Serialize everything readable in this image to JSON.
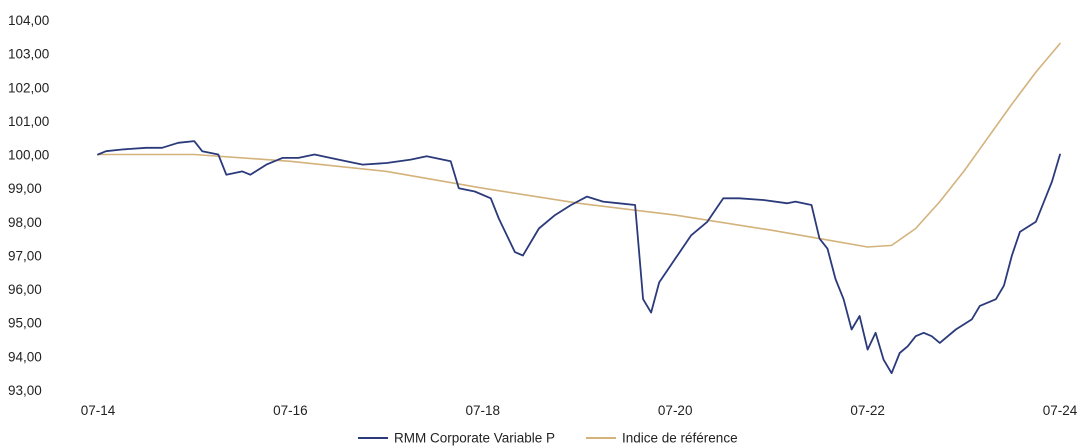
{
  "chart_data": {
    "type": "line",
    "title": "",
    "xlabel": "",
    "ylabel": "",
    "ylim": [
      93,
      104
    ],
    "y_ticks": [
      "93,00",
      "94,00",
      "95,00",
      "96,00",
      "97,00",
      "98,00",
      "99,00",
      "100,00",
      "101,00",
      "102,00",
      "103,00",
      "104,00"
    ],
    "x_ticks": [
      "07-14",
      "07-16",
      "07-18",
      "07-20",
      "07-22",
      "07-24"
    ],
    "x_range": [
      "2014-07",
      "2024-07"
    ],
    "grid": false,
    "legend_position": "bottom",
    "series": [
      {
        "name": "RMM Corporate Variable P",
        "color": "#2b3a7a",
        "points": [
          [
            "2014-07",
            100.0
          ],
          [
            "2014-08",
            100.1
          ],
          [
            "2014-10",
            100.15
          ],
          [
            "2015-01",
            100.2
          ],
          [
            "2015-03",
            100.2
          ],
          [
            "2015-05",
            100.35
          ],
          [
            "2015-07",
            100.4
          ],
          [
            "2015-08",
            100.1
          ],
          [
            "2015-10",
            100.0
          ],
          [
            "2015-11",
            99.4
          ],
          [
            "2016-01",
            99.5
          ],
          [
            "2016-02",
            99.4
          ],
          [
            "2016-04",
            99.7
          ],
          [
            "2016-06",
            99.9
          ],
          [
            "2016-08",
            99.9
          ],
          [
            "2016-10",
            100.0
          ],
          [
            "2017-01",
            99.85
          ],
          [
            "2017-04",
            99.7
          ],
          [
            "2017-07",
            99.75
          ],
          [
            "2017-10",
            99.85
          ],
          [
            "2017-12",
            99.95
          ],
          [
            "2018-03",
            99.8
          ],
          [
            "2018-04",
            99.0
          ],
          [
            "2018-06",
            98.9
          ],
          [
            "2018-08",
            98.7
          ],
          [
            "2018-09",
            98.1
          ],
          [
            "2018-11",
            97.1
          ],
          [
            "2018-12",
            97.0
          ],
          [
            "2019-02",
            97.8
          ],
          [
            "2019-04",
            98.2
          ],
          [
            "2019-06",
            98.5
          ],
          [
            "2019-08",
            98.75
          ],
          [
            "2019-10",
            98.6
          ],
          [
            "2019-12",
            98.55
          ],
          [
            "2020-02",
            98.5
          ],
          [
            "2020-03",
            95.7
          ],
          [
            "2020-04",
            95.3
          ],
          [
            "2020-05",
            96.2
          ],
          [
            "2020-07",
            96.9
          ],
          [
            "2020-09",
            97.6
          ],
          [
            "2020-11",
            98.0
          ],
          [
            "2021-01",
            98.7
          ],
          [
            "2021-03",
            98.7
          ],
          [
            "2021-06",
            98.65
          ],
          [
            "2021-09",
            98.55
          ],
          [
            "2021-10",
            98.6
          ],
          [
            "2021-12",
            98.5
          ],
          [
            "2022-01",
            97.5
          ],
          [
            "2022-02",
            97.2
          ],
          [
            "2022-03",
            96.3
          ],
          [
            "2022-04",
            95.7
          ],
          [
            "2022-05",
            94.8
          ],
          [
            "2022-06",
            95.2
          ],
          [
            "2022-07",
            94.2
          ],
          [
            "2022-08",
            94.7
          ],
          [
            "2022-09",
            93.9
          ],
          [
            "2022-10",
            93.5
          ],
          [
            "2022-11",
            94.1
          ],
          [
            "2022-12",
            94.3
          ],
          [
            "2023-01",
            94.6
          ],
          [
            "2023-02",
            94.7
          ],
          [
            "2023-03",
            94.6
          ],
          [
            "2023-04",
            94.4
          ],
          [
            "2023-06",
            94.8
          ],
          [
            "2023-08",
            95.1
          ],
          [
            "2023-09",
            95.5
          ],
          [
            "2023-11",
            95.7
          ],
          [
            "2023-12",
            96.1
          ],
          [
            "2024-01",
            97.0
          ],
          [
            "2024-02",
            97.7
          ],
          [
            "2024-04",
            98.0
          ],
          [
            "2024-05",
            98.6
          ],
          [
            "2024-06",
            99.2
          ],
          [
            "2024-07",
            100.0
          ]
        ]
      },
      {
        "name": "Indice de référence",
        "color": "#d4b27c",
        "points": [
          [
            "2014-07",
            100.0
          ],
          [
            "2015-07",
            100.0
          ],
          [
            "2016-07",
            99.8
          ],
          [
            "2017-07",
            99.5
          ],
          [
            "2018-07",
            99.0
          ],
          [
            "2019-07",
            98.55
          ],
          [
            "2020-07",
            98.2
          ],
          [
            "2021-07",
            97.75
          ],
          [
            "2022-01",
            97.5
          ],
          [
            "2022-07",
            97.25
          ],
          [
            "2022-10",
            97.3
          ],
          [
            "2023-01",
            97.8
          ],
          [
            "2023-04",
            98.6
          ],
          [
            "2023-07",
            99.5
          ],
          [
            "2023-10",
            100.5
          ],
          [
            "2024-01",
            101.5
          ],
          [
            "2024-04",
            102.45
          ],
          [
            "2024-07",
            103.3
          ]
        ]
      }
    ]
  }
}
